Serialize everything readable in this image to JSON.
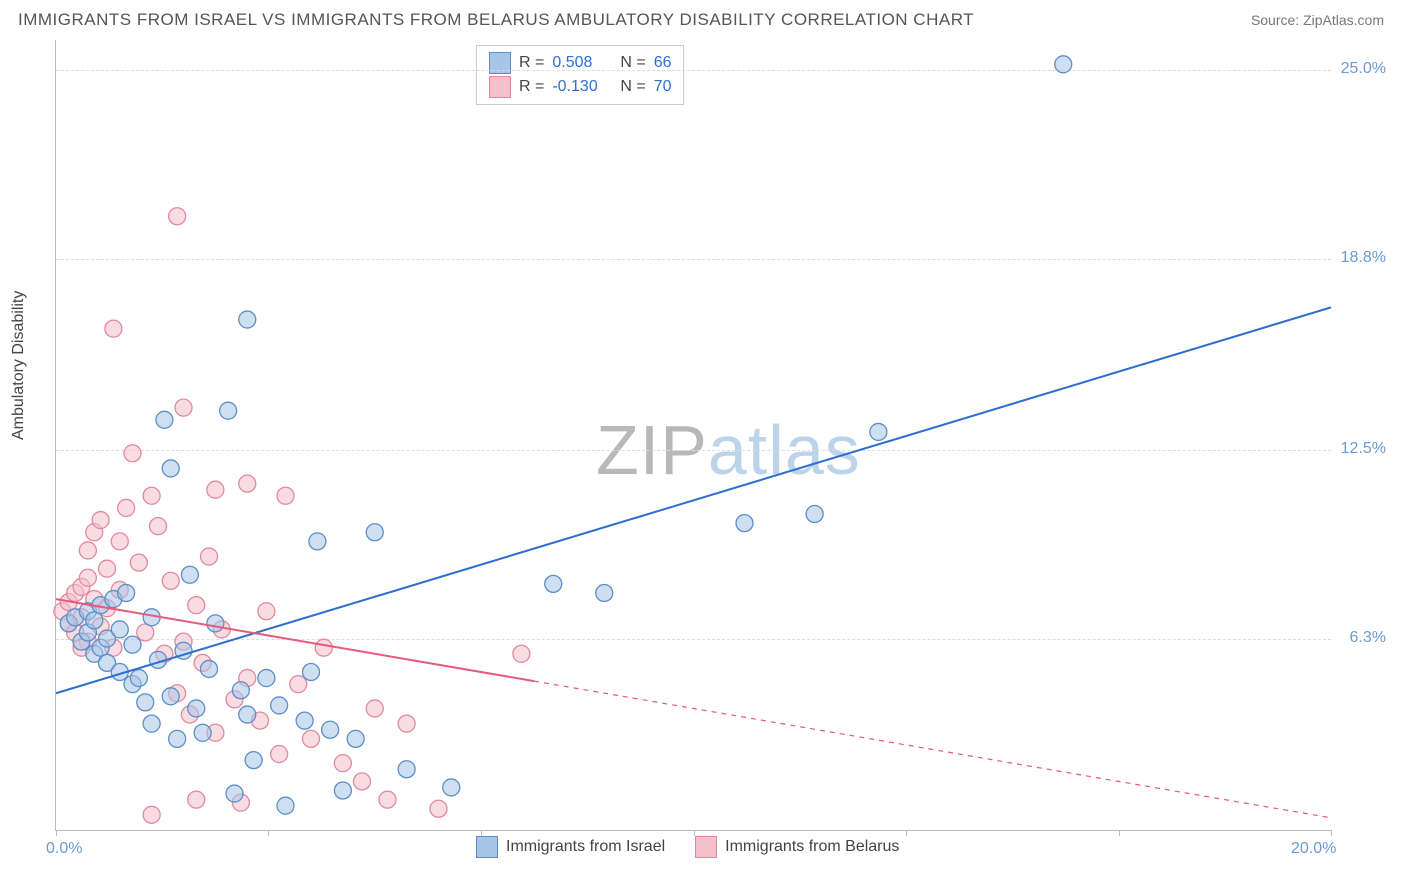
{
  "title": "IMMIGRANTS FROM ISRAEL VS IMMIGRANTS FROM BELARUS AMBULATORY DISABILITY CORRELATION CHART",
  "source": "Source: ZipAtlas.com",
  "ylabel": "Ambulatory Disability",
  "watermark": {
    "text_a": "ZIP",
    "text_b": "atlas",
    "color_a": "#b8b8b8",
    "color_b": "#bcd4ea"
  },
  "chart": {
    "type": "scatter",
    "xlim": [
      0,
      20
    ],
    "ylim": [
      0,
      26
    ],
    "xtick_positions": [
      0,
      3.33,
      6.67,
      10,
      13.33,
      16.67,
      20
    ],
    "xtick_labels_shown": {
      "0": "0.0%",
      "20": "20.0%"
    },
    "ytick_positions": [
      6.3,
      12.5,
      18.8,
      25.0
    ],
    "ytick_labels": [
      "6.3%",
      "12.5%",
      "18.8%",
      "25.0%"
    ],
    "grid_color": "#dddddd",
    "axis_color": "#bbbbbb",
    "background_color": "#ffffff",
    "marker_radius": 8.5,
    "marker_opacity": 0.55,
    "series": [
      {
        "name": "Immigrants from Israel",
        "color_fill": "#a8c5e8",
        "color_stroke": "#5b8fc7",
        "R": "0.508",
        "N": "66",
        "regression": {
          "x1": 0,
          "y1": 4.5,
          "x2": 20,
          "y2": 17.2,
          "solid_until_x": 20,
          "line_color": "#2d6fd0",
          "line_width": 2
        },
        "points": [
          [
            0.2,
            6.8
          ],
          [
            0.3,
            7.0
          ],
          [
            0.4,
            6.2
          ],
          [
            0.5,
            6.5
          ],
          [
            0.5,
            7.2
          ],
          [
            0.6,
            5.8
          ],
          [
            0.6,
            6.9
          ],
          [
            0.7,
            6.0
          ],
          [
            0.7,
            7.4
          ],
          [
            0.8,
            5.5
          ],
          [
            0.8,
            6.3
          ],
          [
            0.9,
            7.6
          ],
          [
            1.0,
            5.2
          ],
          [
            1.0,
            6.6
          ],
          [
            1.1,
            7.8
          ],
          [
            1.2,
            4.8
          ],
          [
            1.2,
            6.1
          ],
          [
            1.3,
            5.0
          ],
          [
            1.4,
            4.2
          ],
          [
            1.5,
            7.0
          ],
          [
            1.5,
            3.5
          ],
          [
            1.6,
            5.6
          ],
          [
            1.7,
            13.5
          ],
          [
            1.8,
            4.4
          ],
          [
            1.8,
            11.9
          ],
          [
            1.9,
            3.0
          ],
          [
            2.0,
            5.9
          ],
          [
            2.1,
            8.4
          ],
          [
            2.2,
            4.0
          ],
          [
            2.3,
            3.2
          ],
          [
            2.4,
            5.3
          ],
          [
            2.5,
            6.8
          ],
          [
            2.7,
            13.8
          ],
          [
            2.8,
            1.2
          ],
          [
            2.9,
            4.6
          ],
          [
            3.0,
            16.8
          ],
          [
            3.0,
            3.8
          ],
          [
            3.1,
            2.3
          ],
          [
            3.3,
            5.0
          ],
          [
            3.5,
            4.1
          ],
          [
            3.6,
            0.8
          ],
          [
            3.9,
            3.6
          ],
          [
            4.0,
            5.2
          ],
          [
            4.1,
            9.5
          ],
          [
            4.3,
            3.3
          ],
          [
            4.5,
            1.3
          ],
          [
            4.7,
            3.0
          ],
          [
            5.0,
            9.8
          ],
          [
            5.5,
            2.0
          ],
          [
            6.2,
            1.4
          ],
          [
            7.8,
            8.1
          ],
          [
            8.6,
            7.8
          ],
          [
            10.8,
            10.1
          ],
          [
            11.9,
            10.4
          ],
          [
            12.9,
            13.1
          ],
          [
            15.8,
            25.2
          ]
        ]
      },
      {
        "name": "Immigrants from Belarus",
        "color_fill": "#f4c0cb",
        "color_stroke": "#e08aa0",
        "R": "-0.130",
        "N": "70",
        "regression": {
          "x1": 0,
          "y1": 7.6,
          "x2": 20,
          "y2": 0.4,
          "solid_until_x": 7.5,
          "line_color": "#e65a7a",
          "line_width": 2
        },
        "points": [
          [
            0.1,
            7.2
          ],
          [
            0.2,
            7.5
          ],
          [
            0.2,
            6.8
          ],
          [
            0.3,
            7.8
          ],
          [
            0.3,
            6.5
          ],
          [
            0.4,
            8.0
          ],
          [
            0.4,
            7.0
          ],
          [
            0.5,
            8.3
          ],
          [
            0.5,
            6.2
          ],
          [
            0.5,
            9.2
          ],
          [
            0.6,
            7.6
          ],
          [
            0.6,
            9.8
          ],
          [
            0.7,
            6.7
          ],
          [
            0.7,
            10.2
          ],
          [
            0.8,
            7.3
          ],
          [
            0.8,
            8.6
          ],
          [
            0.9,
            16.5
          ],
          [
            0.9,
            6.0
          ],
          [
            1.0,
            9.5
          ],
          [
            1.0,
            7.9
          ],
          [
            1.1,
            10.6
          ],
          [
            1.2,
            12.4
          ],
          [
            1.3,
            8.8
          ],
          [
            1.4,
            6.5
          ],
          [
            1.5,
            11.0
          ],
          [
            1.6,
            10.0
          ],
          [
            1.7,
            5.8
          ],
          [
            1.8,
            8.2
          ],
          [
            1.9,
            4.5
          ],
          [
            1.9,
            20.2
          ],
          [
            2.0,
            6.2
          ],
          [
            2.0,
            13.9
          ],
          [
            2.1,
            3.8
          ],
          [
            2.2,
            7.4
          ],
          [
            2.3,
            5.5
          ],
          [
            2.4,
            9.0
          ],
          [
            2.5,
            11.2
          ],
          [
            2.5,
            3.2
          ],
          [
            2.6,
            6.6
          ],
          [
            2.8,
            4.3
          ],
          [
            2.9,
            0.9
          ],
          [
            3.0,
            11.4
          ],
          [
            3.0,
            5.0
          ],
          [
            3.2,
            3.6
          ],
          [
            3.3,
            7.2
          ],
          [
            3.5,
            2.5
          ],
          [
            3.6,
            11.0
          ],
          [
            3.8,
            4.8
          ],
          [
            4.0,
            3.0
          ],
          [
            4.2,
            6.0
          ],
          [
            4.5,
            2.2
          ],
          [
            4.8,
            1.6
          ],
          [
            5.0,
            4.0
          ],
          [
            5.2,
            1.0
          ],
          [
            5.5,
            3.5
          ],
          [
            6.0,
            0.7
          ],
          [
            7.3,
            5.8
          ],
          [
            1.5,
            0.5
          ],
          [
            2.2,
            1.0
          ],
          [
            0.4,
            6.0
          ]
        ]
      }
    ]
  }
}
